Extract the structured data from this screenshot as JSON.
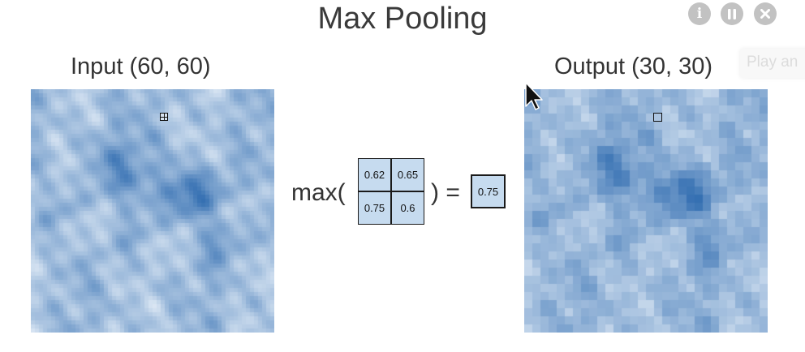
{
  "title": "Max Pooling",
  "controls": {
    "info_glyph": "i",
    "icons": [
      "info-icon",
      "pause-icon",
      "close-icon"
    ],
    "color": "#c2c2c2"
  },
  "hint": {
    "text": "Play an"
  },
  "input_panel": {
    "label": "Input (60, 60)",
    "resolution": 60
  },
  "output_panel": {
    "label": "Output (30, 30)",
    "resolution": 30
  },
  "formula": {
    "prefix": "max(",
    "suffix": ") =",
    "cells": [
      "0.62",
      "0.65",
      "0.75",
      "0.6"
    ],
    "result": "0.75"
  },
  "colors": {
    "low": "#f7fbff",
    "high": "#2d6aaf",
    "cell_fill": "#c6dbef",
    "cell_border": "#1a1a1a"
  },
  "cursor_icon": "mouse-pointer-icon"
}
